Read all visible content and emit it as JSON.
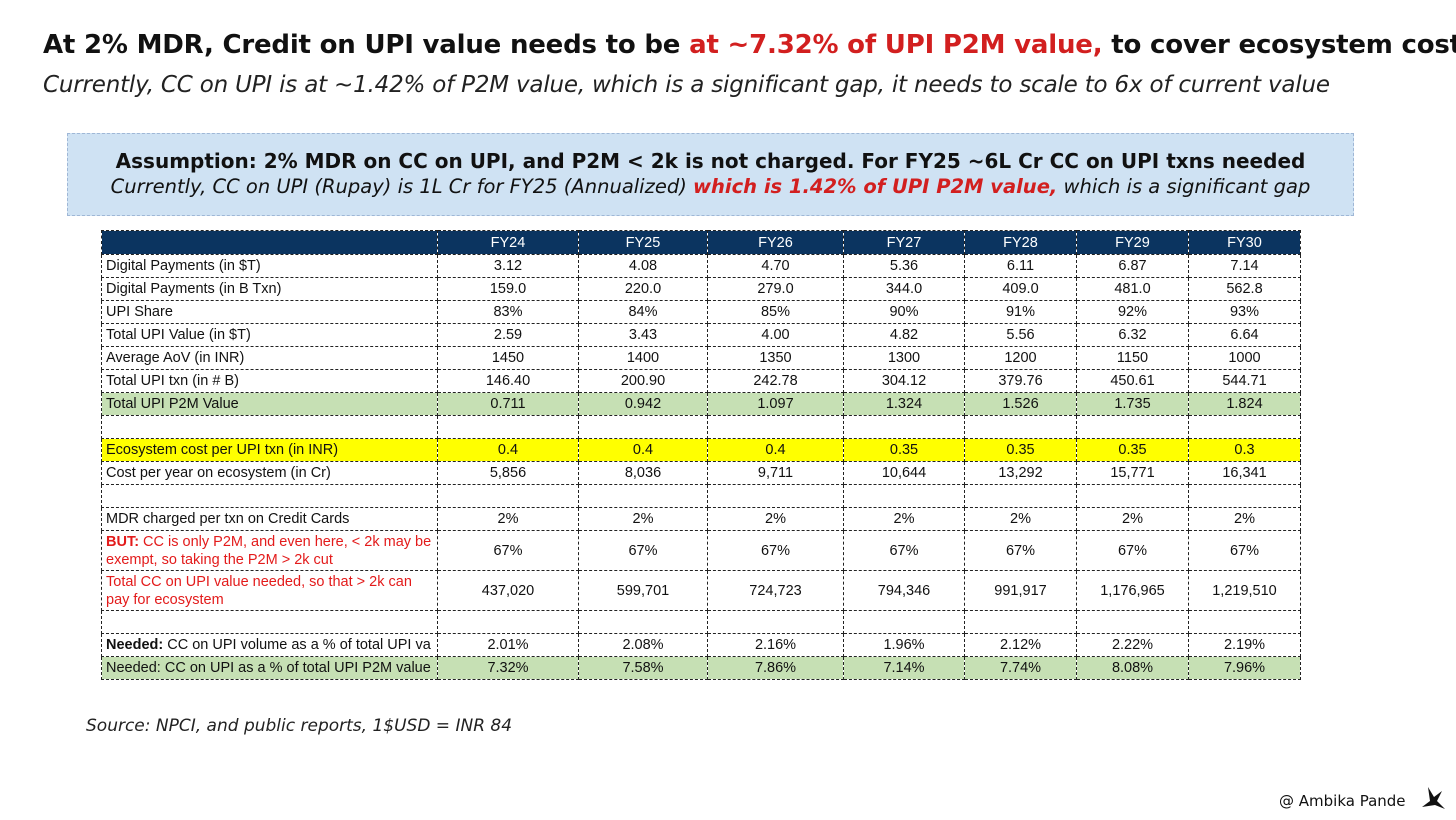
{
  "header": {
    "title_prefix": "At 2% MDR, Credit on UPI value needs to be ",
    "title_highlight": "at ~7.32% of UPI P2M value,",
    "title_suffix": " to cover ecosystem costs",
    "subtitle": "Currently, CC on UPI is at ~1.42% of P2M value, which is a significant gap, it needs to scale to 6x of current value"
  },
  "assumption": {
    "line1": "Assumption: 2% MDR on CC on UPI, and P2M < 2k is not charged. For FY25 ~6L Cr CC on UPI txns needed",
    "line2_prefix": "Currently, CC on UPI (Rupay) is 1L Cr for FY25 (Annualized) ",
    "line2_highlight": "which is 1.42% of UPI P2M value,",
    "line2_suffix": " which is a significant gap"
  },
  "table": {
    "columns": [
      "",
      "FY24",
      "FY25",
      "FY26",
      "FY27",
      "FY28",
      "FY29",
      "FY30"
    ],
    "rows": [
      {
        "label": "Digital Payments (in $T)",
        "values": [
          "3.12",
          "4.08",
          "4.70",
          "5.36",
          "6.11",
          "6.87",
          "7.14"
        ]
      },
      {
        "label": "Digital Payments (in B Txn)",
        "values": [
          "159.0",
          "220.0",
          "279.0",
          "344.0",
          "409.0",
          "481.0",
          "562.8"
        ]
      },
      {
        "label": "UPI Share",
        "values": [
          "83%",
          "84%",
          "85%",
          "90%",
          "91%",
          "92%",
          "93%"
        ]
      },
      {
        "label": "Total UPI Value (in $T)",
        "values": [
          "2.59",
          "3.43",
          "4.00",
          "4.82",
          "5.56",
          "6.32",
          "6.64"
        ]
      },
      {
        "label": "Average AoV (in INR)",
        "values": [
          "1450",
          "1400",
          "1350",
          "1300",
          "1200",
          "1150",
          "1000"
        ]
      },
      {
        "label": "Total UPI txn (in # B)",
        "values": [
          "146.40",
          "200.90",
          "242.78",
          "304.12",
          "379.76",
          "450.61",
          "544.71"
        ]
      },
      {
        "label": "Total UPI P2M Value",
        "values": [
          "0.711",
          "0.942",
          "1.097",
          "1.324",
          "1.526",
          "1.735",
          "1.824"
        ]
      },
      {
        "label": "Ecosystem cost per UPI txn (in INR)",
        "values": [
          "0.4",
          "0.4",
          "0.4",
          "0.35",
          "0.35",
          "0.35",
          "0.3"
        ]
      },
      {
        "label": "Cost per year on ecosystem (in Cr)",
        "values": [
          "5,856",
          "8,036",
          "9,711",
          "10,644",
          "13,292",
          "15,771",
          "16,341"
        ]
      },
      {
        "label": "MDR charged per txn on Credit Cards",
        "values": [
          "2%",
          "2%",
          "2%",
          "2%",
          "2%",
          "2%",
          "2%"
        ]
      },
      {
        "label_bold": "BUT:",
        "label": " CC is only P2M, and even here, < 2k may be exempt, so taking the P2M > 2k cut",
        "values": [
          "67%",
          "67%",
          "67%",
          "67%",
          "67%",
          "67%",
          "67%"
        ]
      },
      {
        "label": "Total CC on UPI value needed, so that > 2k can pay for ecosystem",
        "values": [
          "437,020",
          "599,701",
          "724,723",
          "794,346",
          "991,917",
          "1,176,965",
          "1,219,510"
        ]
      },
      {
        "label_bold": "Needed:",
        "label": " CC on UPI volume as a % of total UPI va",
        "values": [
          "2.01%",
          "2.08%",
          "2.16%",
          "1.96%",
          "2.12%",
          "2.22%",
          "2.19%"
        ]
      },
      {
        "label": "Needed: CC on UPI as a % of total UPI P2M value",
        "values": [
          "7.32%",
          "7.58%",
          "7.86%",
          "7.14%",
          "7.74%",
          "8.08%",
          "7.96%"
        ]
      }
    ]
  },
  "source": "Source: NPCI, and public reports, 1$USD = INR 84",
  "credit": "@ Ambika Pande",
  "icons": {
    "logo": "bird-icon"
  }
}
